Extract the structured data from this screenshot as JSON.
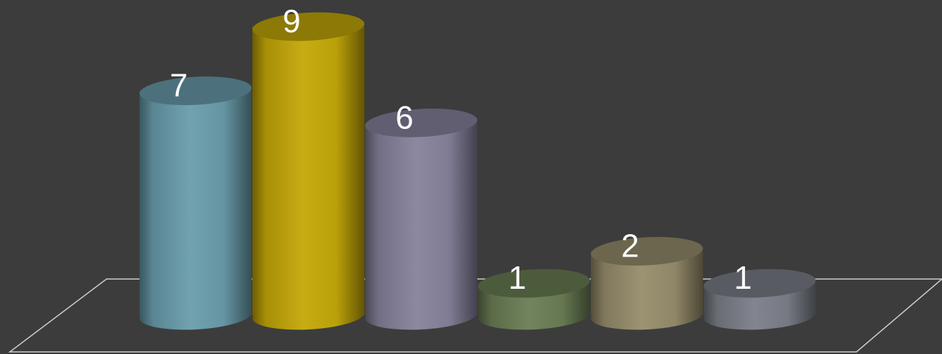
{
  "chart_data": {
    "type": "bar",
    "style": "3d-cylinder",
    "values": [
      7,
      9,
      6,
      1,
      2,
      1
    ],
    "data_labels": [
      "7",
      "9",
      "6",
      "1",
      "2",
      "1"
    ],
    "colors": [
      "#6a9dac",
      "#c4a808",
      "#86829c",
      "#6b7e55",
      "#978d6c",
      "#7b7f89"
    ],
    "ylim": [
      0,
      9
    ],
    "grid": false,
    "legend": "none"
  },
  "theme": {
    "background": "#3c3c3c",
    "floor_line": "#d0d0d0",
    "label_color": "#ffffff"
  }
}
